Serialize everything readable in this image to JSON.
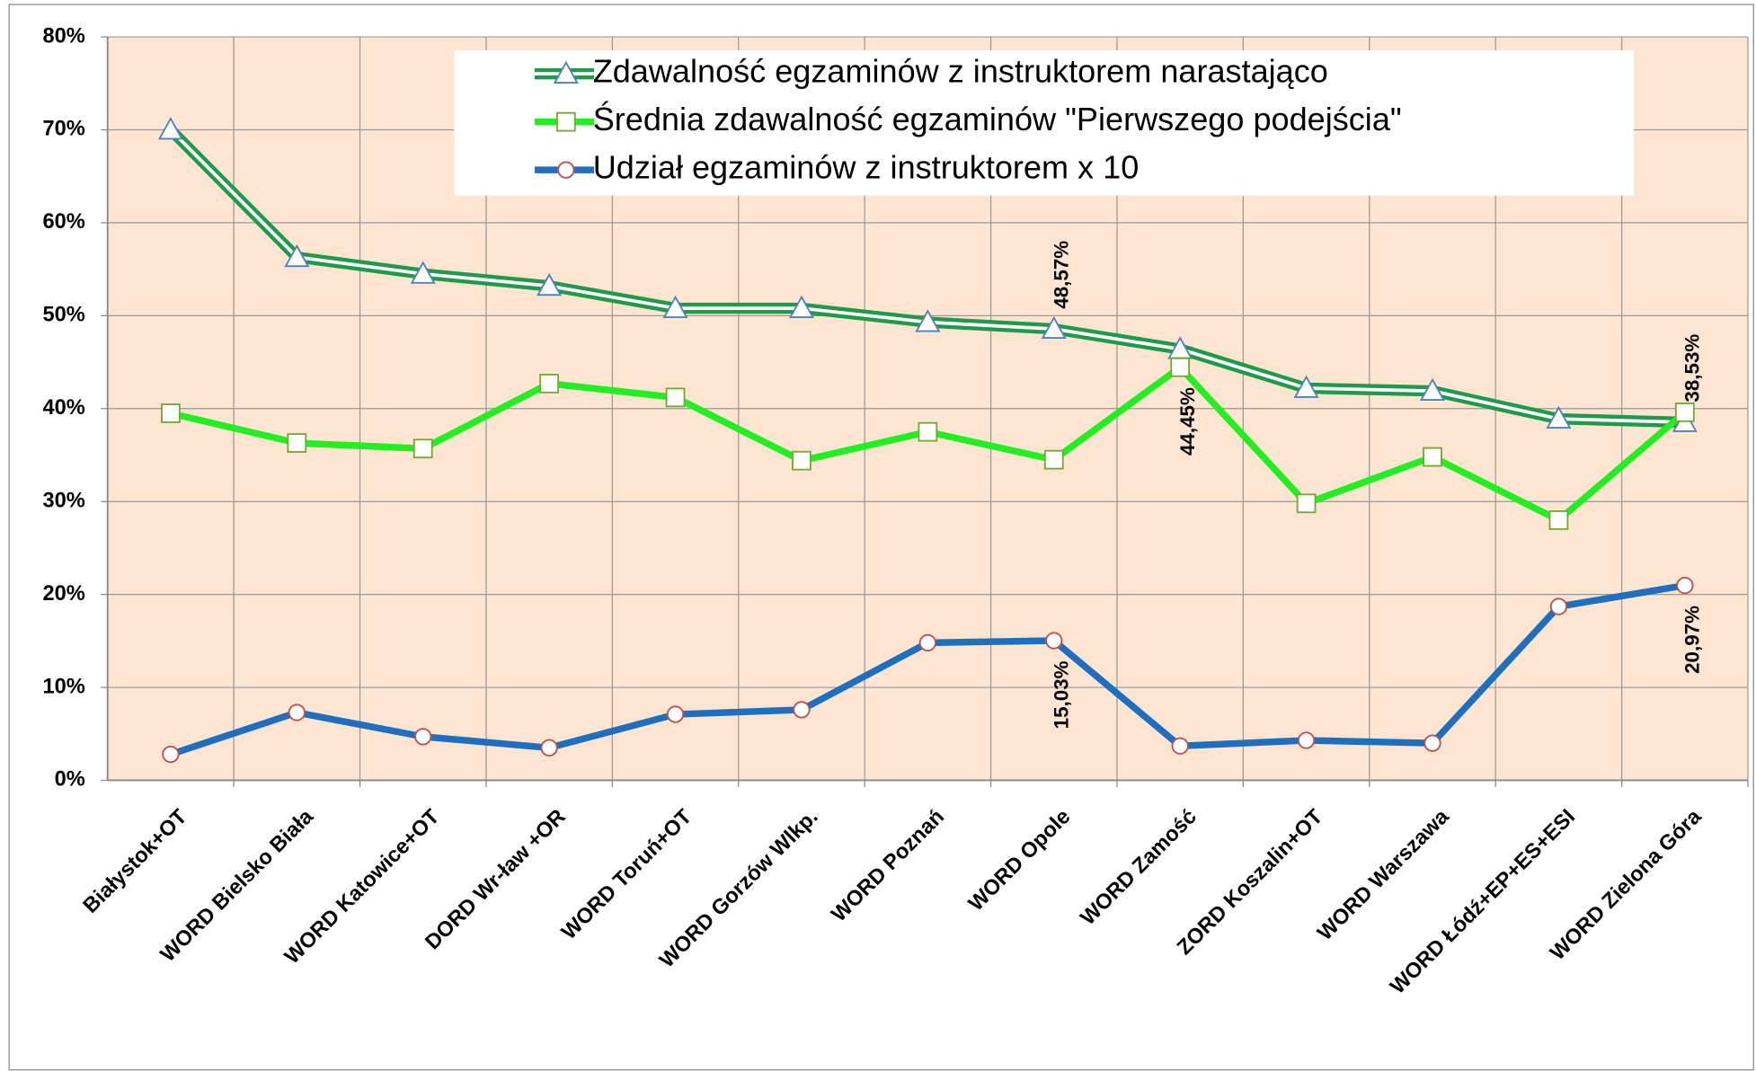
{
  "chart_data": {
    "type": "line",
    "categories": [
      "Białystok+OT",
      "WORD Bielsko Biała",
      "WORD Katowice+OT",
      "DORD Wr-ław +OR",
      "WORD Toruń+OT",
      "WORD Gorzów Wlkp.",
      "WORD Poznań",
      "WORD Opole",
      "WORD Zamość",
      "ZORD Koszalin+OT",
      "WORD Warszawa",
      "WORD Łódź+EP+ES+ESI",
      "WORD Zielona Góra"
    ],
    "series": [
      {
        "name": "Zdawalność egzaminów z instruktorem narastająco",
        "color": "#1f9a4a",
        "marker": "triangle",
        "values": [
          70.0,
          56.3,
          54.5,
          53.2,
          50.8,
          50.8,
          49.3,
          48.57,
          46.4,
          42.2,
          41.9,
          38.9,
          38.53
        ],
        "value_labels": [
          null,
          null,
          null,
          null,
          null,
          null,
          null,
          "48,57%",
          null,
          null,
          null,
          null,
          "38,53%"
        ]
      },
      {
        "name": "Średnia zdawalność egzaminów \"Pierwszego podejścia\"",
        "color": "#22ee22",
        "marker": "square",
        "values": [
          39.5,
          36.3,
          35.7,
          42.7,
          41.2,
          34.4,
          37.5,
          34.5,
          44.45,
          29.8,
          34.8,
          28.0,
          39.6
        ],
        "value_labels": [
          null,
          null,
          null,
          null,
          null,
          null,
          null,
          null,
          "44,45%",
          null,
          null,
          null,
          null
        ]
      },
      {
        "name": "Udział egzaminów z instruktorem x 10",
        "color": "#1f6fbf",
        "marker": "circle",
        "values": [
          2.8,
          7.3,
          4.7,
          3.5,
          7.1,
          7.6,
          14.8,
          15.03,
          3.7,
          4.3,
          4.0,
          18.7,
          20.97
        ],
        "value_labels": [
          null,
          null,
          null,
          null,
          null,
          null,
          null,
          "15,03%",
          null,
          null,
          null,
          null,
          "20,97%"
        ]
      }
    ],
    "ylim": [
      0,
      80
    ],
    "yticks": [
      {
        "value": 0,
        "label": "0%"
      },
      {
        "value": 10,
        "label": "10%"
      },
      {
        "value": 20,
        "label": "20%"
      },
      {
        "value": 30,
        "label": "30%"
      },
      {
        "value": 40,
        "label": "40%"
      },
      {
        "value": 50,
        "label": "50%"
      },
      {
        "value": 60,
        "label": "60%"
      },
      {
        "value": 70,
        "label": "70%"
      },
      {
        "value": 80,
        "label": "80%"
      }
    ],
    "grid": true,
    "legend": "top"
  }
}
